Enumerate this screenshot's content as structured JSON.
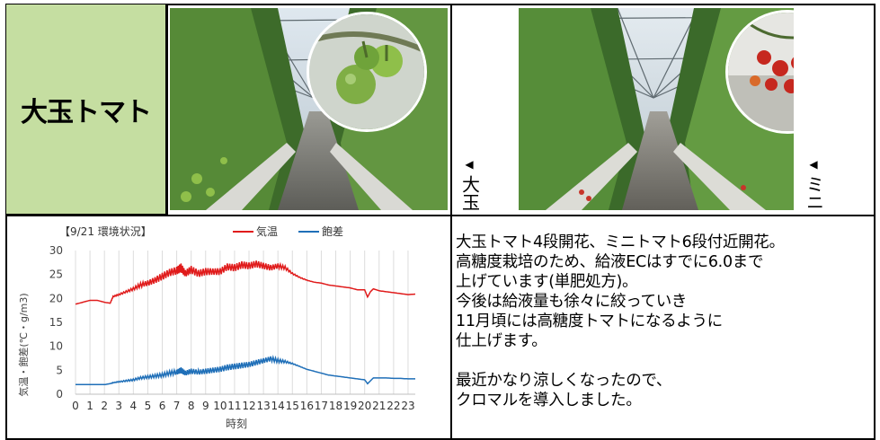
{
  "title_cell": {
    "text": "大玉トマト"
  },
  "photos": [
    {
      "icon": "greenhouse-large-tomato-photo",
      "inset_icon": "green-tomatoes-closeup-photo",
      "side_label": "大玉",
      "arrow": "◀"
    },
    {
      "icon": "greenhouse-mini-tomato-photo",
      "inset_icon": "red-mini-tomatoes-closeup-photo",
      "side_label": "ミニ",
      "arrow": "◀"
    }
  ],
  "notes": {
    "lines": [
      "大玉トマト4段開花、ミニトマト6段付近開花。",
      "高糖度栽培のため、給液ECはすでに6.0まで",
      "上げています(単肥処方)。",
      "今後は給液量も徐々に絞っていき",
      "11月頃には高糖度トマトになるように",
      "仕上げます。",
      "",
      "最近かなり涼しくなったので、",
      "クロマルを導入しました。"
    ]
  },
  "colors": {
    "title_bg": "#c5dea1",
    "temp_line": "#e01b1b",
    "sat_line": "#1f6fb8"
  },
  "chart_data": {
    "type": "line",
    "title": "【9/21 環境状況】",
    "xlabel": "時刻",
    "ylabel": "気温・飽差(℃・g/m3)",
    "ylim": [
      0,
      30
    ],
    "yticks": [
      0,
      5,
      10,
      15,
      20,
      25,
      30
    ],
    "xlim": [
      0,
      23.5
    ],
    "xticks": [
      "0",
      "1",
      "2",
      "3",
      "4",
      "5",
      "6",
      "7",
      "8",
      "9",
      "10",
      "11",
      "12",
      "13",
      "14",
      "15",
      "16",
      "17",
      "18",
      "19",
      "20",
      "21",
      "22",
      "23"
    ],
    "grid": "vertical",
    "legend": "top",
    "series": [
      {
        "name": "気温",
        "color": "#e01b1b",
        "x": [
          0,
          0.5,
          1,
          1.5,
          2,
          2.4,
          2.6,
          3,
          3.5,
          4,
          4.5,
          5,
          5.5,
          6,
          6.5,
          7,
          7.3,
          7.6,
          8,
          8.5,
          9,
          9.5,
          10,
          10.5,
          11,
          11.5,
          12,
          12.5,
          13,
          13.5,
          14,
          14.5,
          15,
          15.5,
          16,
          16.5,
          17,
          17.5,
          18,
          18.5,
          19,
          19.5,
          20,
          20.2,
          20.4,
          20.6,
          21,
          21.5,
          22,
          22.5,
          23,
          23.5
        ],
        "y": [
          18.8,
          19.2,
          19.6,
          19.6,
          19.2,
          19,
          20.4,
          20.8,
          21.4,
          22,
          22.8,
          23.2,
          23.8,
          24.6,
          25.4,
          25.8,
          26.4,
          25.2,
          26,
          25.2,
          25.6,
          25.6,
          25.6,
          26.6,
          26.4,
          27,
          26.8,
          27.2,
          26.8,
          26.4,
          26.8,
          26.4,
          25.2,
          24.4,
          23.8,
          23.4,
          23.2,
          22.8,
          22.6,
          22.4,
          22.2,
          21.8,
          21.8,
          20.3,
          21.4,
          22,
          21.6,
          21.4,
          21.2,
          21,
          20.8,
          20.9
        ],
        "noise": [
          0,
          0,
          0,
          0,
          0,
          0,
          0.2,
          0.3,
          0.4,
          0.6,
          0.9,
          1.1,
          1.3,
          1.5,
          1.5,
          1.6,
          1.8,
          1.4,
          1.6,
          1.5,
          1.5,
          1.3,
          1.4,
          1.4,
          1.5,
          1.5,
          1.4,
          1.4,
          1.3,
          1.2,
          1.0,
          0.7,
          0.3,
          0.2,
          0.1,
          0,
          0,
          0,
          0,
          0,
          0,
          0,
          0,
          0,
          0,
          0,
          0,
          0,
          0,
          0,
          0,
          0
        ]
      },
      {
        "name": "飽差",
        "color": "#1f6fb8",
        "x": [
          0,
          0.5,
          1,
          1.5,
          2,
          2.4,
          2.6,
          3,
          3.5,
          4,
          4.5,
          5,
          5.5,
          6,
          6.5,
          7,
          7.3,
          7.6,
          8,
          8.5,
          9,
          9.5,
          10,
          10.5,
          11,
          11.5,
          12,
          12.5,
          13,
          13.5,
          14,
          14.5,
          15,
          15.5,
          16,
          16.5,
          17,
          17.5,
          18,
          18.5,
          19,
          19.5,
          20,
          20.2,
          20.4,
          20.6,
          21,
          21.5,
          22,
          22.5,
          23,
          23.5
        ],
        "y": [
          2,
          2,
          2,
          2,
          2,
          2.2,
          2.4,
          2.6,
          2.8,
          3,
          3.4,
          3.6,
          3.8,
          4,
          4.4,
          4.6,
          5,
          4.4,
          4.8,
          4.6,
          4.8,
          5,
          5.2,
          5.6,
          5.8,
          6,
          6.2,
          6.6,
          7,
          7.4,
          7,
          6.8,
          6.4,
          5.8,
          5.2,
          4.8,
          4.4,
          4,
          3.8,
          3.6,
          3.4,
          3.2,
          3,
          2.2,
          2.8,
          3.4,
          3.4,
          3.4,
          3.3,
          3.3,
          3.2,
          3.2
        ],
        "noise": [
          0,
          0,
          0,
          0,
          0,
          0,
          0.1,
          0.2,
          0.3,
          0.4,
          0.5,
          0.6,
          0.7,
          0.8,
          0.9,
          1.0,
          1.2,
          1.0,
          1.1,
          1.0,
          1.1,
          1.1,
          1.1,
          1.2,
          1.2,
          1.2,
          1.1,
          1.1,
          1.0,
          1.0,
          0.8,
          0.5,
          0.2,
          0.1,
          0,
          0,
          0,
          0,
          0,
          0,
          0,
          0,
          0,
          0,
          0,
          0,
          0,
          0,
          0,
          0,
          0,
          0
        ]
      }
    ]
  }
}
